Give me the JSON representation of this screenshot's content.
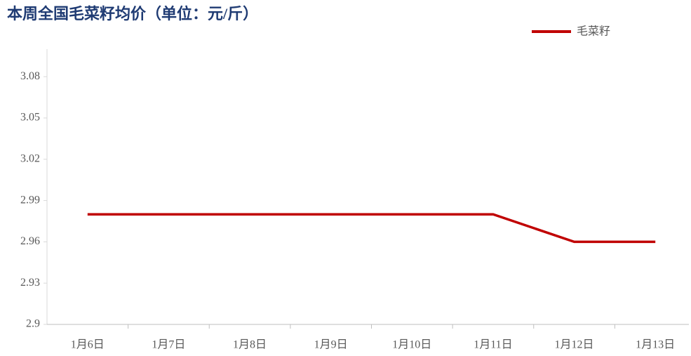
{
  "chart_data": {
    "type": "line",
    "title": "本周全国毛菜籽均价（单位：元/斤）",
    "categories": [
      "1月6日",
      "1月7日",
      "1月8日",
      "1月9日",
      "1月10日",
      "1月11日",
      "1月12日",
      "1月13日"
    ],
    "series": [
      {
        "name": "毛菜籽",
        "color": "#c00000",
        "values": [
          2.98,
          2.98,
          2.98,
          2.98,
          2.98,
          2.98,
          2.96,
          2.96
        ]
      }
    ],
    "ylim": [
      2.9,
      3.1
    ],
    "yticks": [
      2.9,
      2.93,
      2.96,
      2.99,
      3.02,
      3.05,
      3.08
    ],
    "legend": "top-right"
  }
}
